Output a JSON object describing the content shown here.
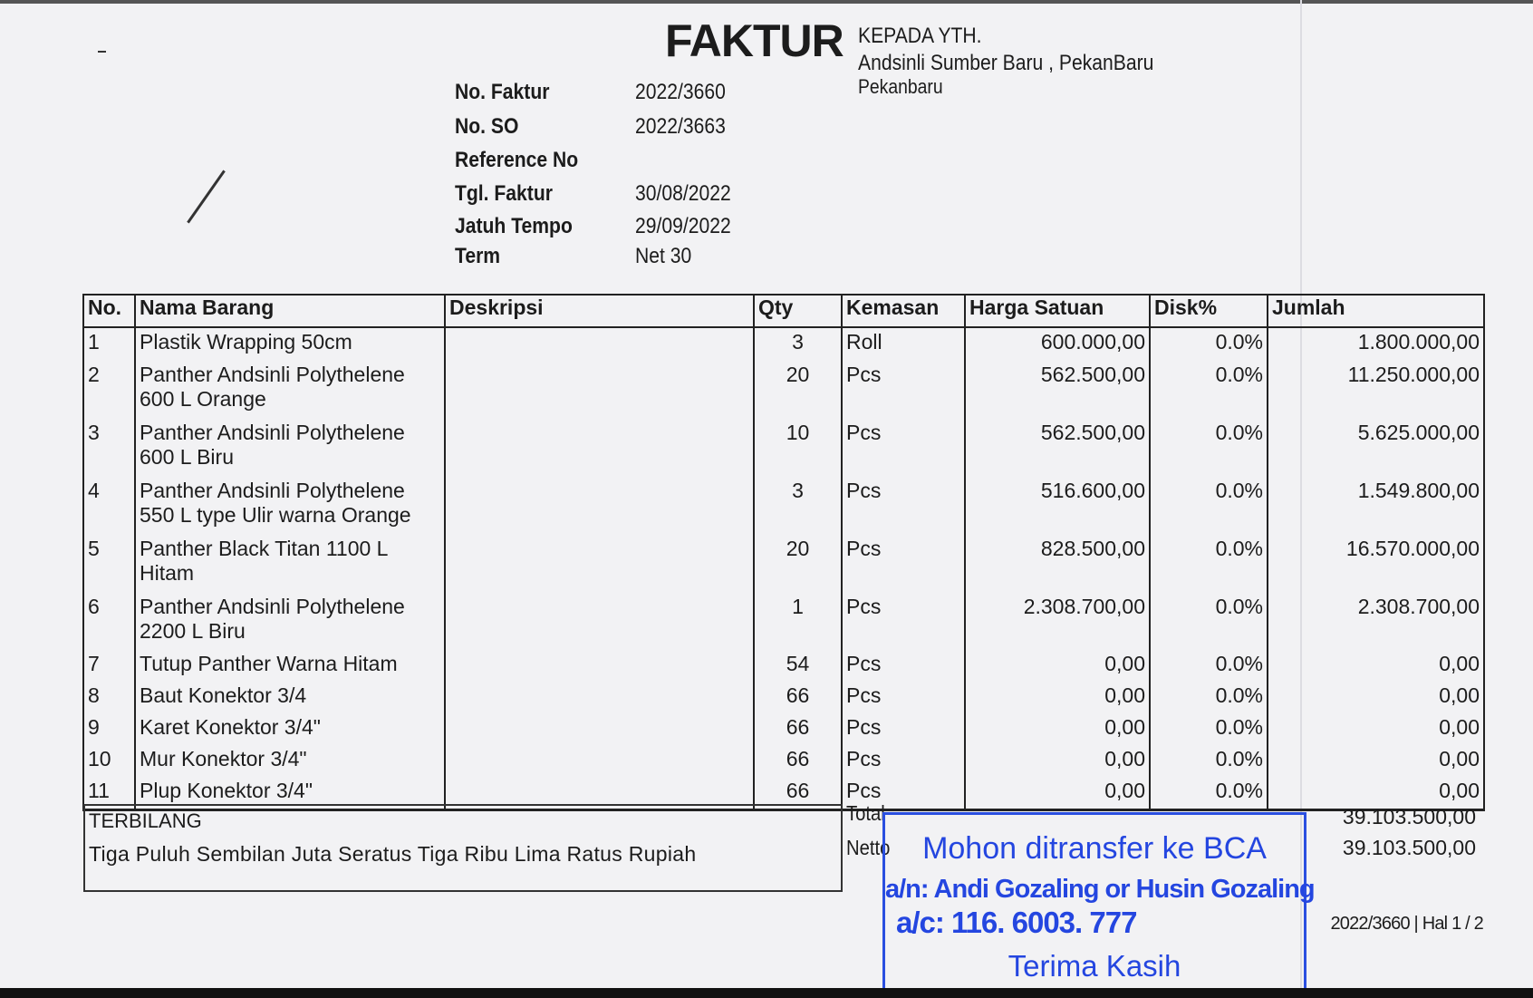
{
  "header": {
    "title": "FAKTUR",
    "recipient_label": "KEPADA YTH.",
    "recipient_name": "Andsinli Sumber Baru , PekanBaru",
    "recipient_city": "Pekanbaru"
  },
  "meta": [
    {
      "label": "No. Faktur",
      "value": "2022/3660"
    },
    {
      "label": "No. SO",
      "value": "2022/3663"
    },
    {
      "label": "Reference No",
      "value": ""
    },
    {
      "label": "Tgl. Faktur",
      "value": "30/08/2022"
    },
    {
      "label": "Jatuh Tempo",
      "value": "29/09/2022"
    },
    {
      "label": "Term",
      "value": "Net 30"
    }
  ],
  "table": {
    "columns": [
      "No.",
      "Nama Barang",
      "Deskripsi",
      "Qty",
      "Kemasan",
      "Harga Satuan",
      "Disk%",
      "Jumlah"
    ],
    "rows": [
      {
        "no": "1",
        "name": "Plastik Wrapping 50cm",
        "desc": "",
        "qty": "3",
        "unit": "Roll",
        "price": "600.000,00",
        "disc": "0.0%",
        "total": "1.800.000,00"
      },
      {
        "no": "2",
        "name": "Panther Andsinli Polythelene 600 L Orange",
        "desc": "",
        "qty": "20",
        "unit": "Pcs",
        "price": "562.500,00",
        "disc": "0.0%",
        "total": "11.250.000,00"
      },
      {
        "no": "3",
        "name": "Panther Andsinli Polythelene 600 L Biru",
        "desc": "",
        "qty": "10",
        "unit": "Pcs",
        "price": "562.500,00",
        "disc": "0.0%",
        "total": "5.625.000,00"
      },
      {
        "no": "4",
        "name": "Panther Andsinli Polythelene 550 L type Ulir warna Orange",
        "desc": "",
        "qty": "3",
        "unit": "Pcs",
        "price": "516.600,00",
        "disc": "0.0%",
        "total": "1.549.800,00"
      },
      {
        "no": "5",
        "name": "Panther Black Titan 1100 L Hitam",
        "desc": "",
        "qty": "20",
        "unit": "Pcs",
        "price": "828.500,00",
        "disc": "0.0%",
        "total": "16.570.000,00"
      },
      {
        "no": "6",
        "name": "Panther Andsinli Polythelene 2200 L Biru",
        "desc": "",
        "qty": "1",
        "unit": "Pcs",
        "price": "2.308.700,00",
        "disc": "0.0%",
        "total": "2.308.700,00"
      },
      {
        "no": "7",
        "name": "Tutup Panther Warna Hitam",
        "desc": "",
        "qty": "54",
        "unit": "Pcs",
        "price": "0,00",
        "disc": "0.0%",
        "total": "0,00"
      },
      {
        "no": "8",
        "name": "Baut Konektor 3/4",
        "desc": "",
        "qty": "66",
        "unit": "Pcs",
        "price": "0,00",
        "disc": "0.0%",
        "total": "0,00"
      },
      {
        "no": "9",
        "name": "Karet Konektor 3/4\"",
        "desc": "",
        "qty": "66",
        "unit": "Pcs",
        "price": "0,00",
        "disc": "0.0%",
        "total": "0,00"
      },
      {
        "no": "10",
        "name": "Mur Konektor 3/4\"",
        "desc": "",
        "qty": "66",
        "unit": "Pcs",
        "price": "0,00",
        "disc": "0.0%",
        "total": "0,00"
      },
      {
        "no": "11",
        "name": "Plup Konektor 3/4\"",
        "desc": "",
        "qty": "66",
        "unit": "Pcs",
        "price": "0,00",
        "disc": "0.0%",
        "total": "0,00"
      }
    ]
  },
  "terbilang": {
    "label": "TERBILANG",
    "text": "Tiga Puluh Sembilan Juta Seratus Tiga Ribu Lima Ratus Rupiah"
  },
  "totals": {
    "total_label": "Total",
    "total_value": "39.103.500,00",
    "netto_label": "Netto",
    "netto_value": "39.103.500,00"
  },
  "page_ref": "2022/3660 | Hal 1 / 2",
  "stamp": {
    "line1": "Mohon ditransfer ke BCA",
    "line2": "a/n: Andi Gozaling or Husin Gozaling",
    "line3": "a/c: 116. 6003. 777",
    "line4": "Terima Kasih",
    "color": "#2446e0"
  }
}
